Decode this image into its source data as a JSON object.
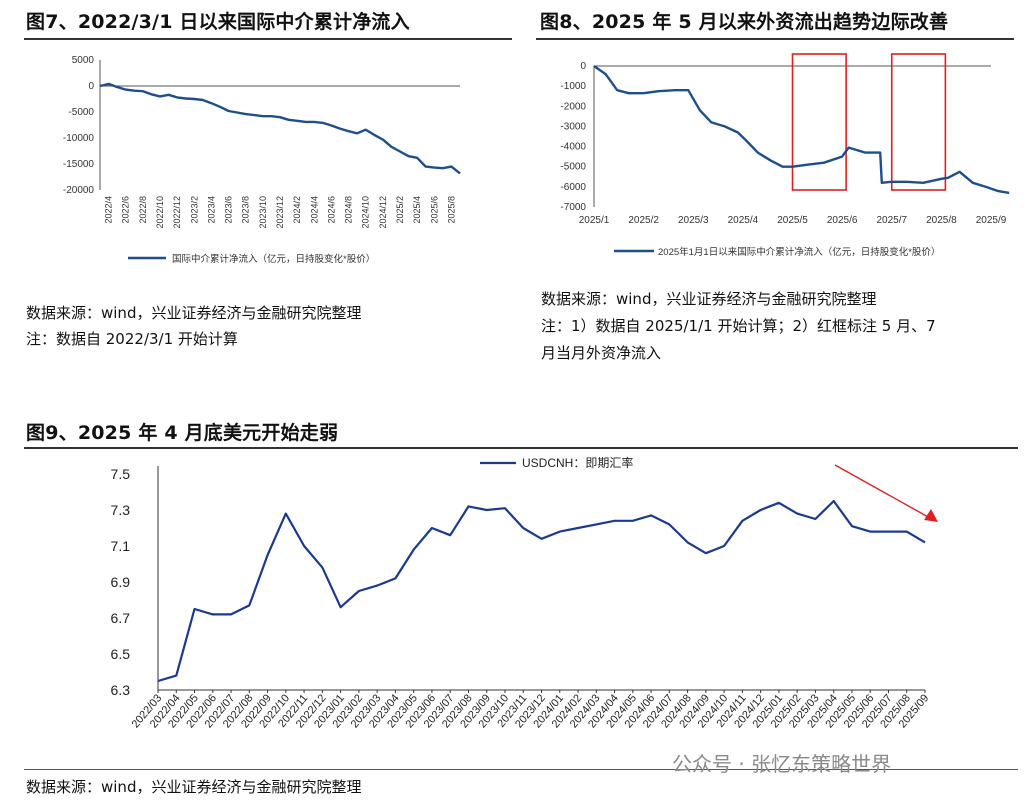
{
  "chart7": {
    "title": "图7、2022/3/1 日以来国际中介累计净流入",
    "legend": "国际中介累计净流入（亿元，日持股变化*股价）",
    "source": "数据来源：wind，兴业证券经济与金融研究院整理",
    "note": "注：数据自 2022/3/1 开始计算"
  },
  "chart8": {
    "title": "图8、2025 年 5 月以来外资流出趋势边际改善",
    "legend": "2025年1月1日以来国际中介累计净流入（亿元，日持股变化*股价）",
    "source": "数据来源：wind，兴业证券经济与金融研究院整理",
    "note_line1": "注：1）数据自 2025/1/1 开始计算；2）红框标注 5 月、7",
    "note_line2": "月当月外资净流入"
  },
  "chart9": {
    "title": "图9、2025 年 4 月底美元开始走弱",
    "legend": "USDCNH：即期汇率",
    "source": "数据来源：wind，兴业证券经济与金融研究院整理"
  },
  "watermark": "公众号 · 张忆东策略世界",
  "colors": {
    "series": "#1f4e8c",
    "series9": "#1a3a8f",
    "highlight": "#e02020",
    "arrow": "#e02020"
  },
  "chart_data": [
    {
      "type": "line",
      "title": "图7、2022/3/1 日以来国际中介累计净流入",
      "xlabel": "",
      "ylabel": "",
      "ylim": [
        -20000,
        5000
      ],
      "yticks": [
        5000,
        0,
        -5000,
        -10000,
        -15000,
        -20000
      ],
      "x_tick_labels": [
        "2022/4",
        "2022/6",
        "2022/8",
        "2022/10",
        "2022/12",
        "2023/2",
        "2023/4",
        "2023/6",
        "2023/8",
        "2023/10",
        "2023/12",
        "2024/2",
        "2024/4",
        "2024/6",
        "2024/8",
        "2024/10",
        "2024/12",
        "2025/2",
        "2025/4",
        "2025/6",
        "2025/8"
      ],
      "series": [
        {
          "name": "国际中介累计净流入（亿元，日持股变化*股价）",
          "x": [
            "2022/3",
            "2022/4",
            "2022/5",
            "2022/6",
            "2022/7",
            "2022/8",
            "2022/9",
            "2022/10",
            "2022/11",
            "2022/12",
            "2023/1",
            "2023/2",
            "2023/3",
            "2023/4",
            "2023/5",
            "2023/6",
            "2023/7",
            "2023/8",
            "2023/9",
            "2023/10",
            "2023/11",
            "2023/12",
            "2024/1",
            "2024/2",
            "2024/3",
            "2024/4",
            "2024/5",
            "2024/6",
            "2024/7",
            "2024/8",
            "2024/9",
            "2024/10",
            "2024/11",
            "2024/12",
            "2025/1",
            "2025/2",
            "2025/3",
            "2025/4",
            "2025/5",
            "2025/6",
            "2025/7",
            "2025/8",
            "2025/9"
          ],
          "values": [
            0,
            400,
            -200,
            -700,
            -900,
            -1000,
            -1600,
            -2000,
            -1700,
            -2200,
            -2400,
            -2500,
            -2700,
            -3300,
            -4000,
            -4800,
            -5100,
            -5400,
            -5600,
            -5800,
            -5800,
            -6000,
            -6500,
            -6700,
            -6900,
            -6900,
            -7100,
            -7600,
            -8200,
            -8700,
            -9100,
            -8400,
            -9400,
            -10300,
            -11700,
            -12600,
            -13500,
            -13800,
            -15500,
            -15700,
            -15800,
            -15500,
            -16800
          ]
        }
      ]
    },
    {
      "type": "line",
      "title": "图8、2025 年 5 月以来外资流出趋势边际改善",
      "xlabel": "",
      "ylabel": "",
      "ylim": [
        -7000,
        0
      ],
      "yticks": [
        0,
        -1000,
        -2000,
        -3000,
        -4000,
        -5000,
        -6000,
        -7000
      ],
      "x_tick_labels": [
        "2025/1",
        "2025/2",
        "2025/3",
        "2025/4",
        "2025/5",
        "2025/6",
        "2025/7",
        "2025/8",
        "2025/9"
      ],
      "highlight_ranges": [
        [
          "2025/5/1",
          "2025/5/31"
        ],
        [
          "2025/7/1",
          "2025/7/31"
        ]
      ],
      "series": [
        {
          "name": "2025年1月1日以来国际中介累计净流入（亿元，日持股变化*股价）",
          "x": [
            "2025/1/1",
            "2025/1/8",
            "2025/1/15",
            "2025/1/22",
            "2025/2/1",
            "2025/2/10",
            "2025/2/20",
            "2025/2/28",
            "2025/3/5",
            "2025/3/12",
            "2025/3/20",
            "2025/3/28",
            "2025/4/3",
            "2025/4/10",
            "2025/4/18",
            "2025/4/25",
            "2025/5/1",
            "2025/5/10",
            "2025/5/20",
            "2025/5/31",
            "2025/6/5",
            "2025/6/15",
            "2025/6/24",
            "2025/6/25",
            "2025/7/1",
            "2025/7/10",
            "2025/7/20",
            "2025/7/31",
            "2025/8/5",
            "2025/8/12",
            "2025/8/20",
            "2025/8/28",
            "2025/9/5",
            "2025/9/12"
          ],
          "values": [
            0,
            -400,
            -1200,
            -1350,
            -1350,
            -1250,
            -1200,
            -1200,
            -2200,
            -2800,
            -3000,
            -3300,
            -3700,
            -4300,
            -4700,
            -5000,
            -5000,
            -4900,
            -4800,
            -4500,
            -4050,
            -4300,
            -4300,
            -5800,
            -5750,
            -5750,
            -5800,
            -5600,
            -5550,
            -5250,
            -5800,
            -6000,
            -6200,
            -6300
          ]
        }
      ]
    },
    {
      "type": "line",
      "title": "图9、2025 年 4 月底美元开始走弱",
      "xlabel": "",
      "ylabel": "",
      "ylim": [
        6.3,
        7.5
      ],
      "yticks": [
        7.5,
        7.3,
        7.1,
        6.9,
        6.7,
        6.5,
        6.3
      ],
      "x_tick_labels": [
        "2022/03",
        "2022/04",
        "2022/05",
        "2022/06",
        "2022/07",
        "2022/08",
        "2022/09",
        "2022/10",
        "2022/11",
        "2022/12",
        "2023/01",
        "2023/02",
        "2023/03",
        "2023/04",
        "2023/05",
        "2023/06",
        "2023/07",
        "2023/08",
        "2023/09",
        "2023/10",
        "2023/11",
        "2023/12",
        "2024/01",
        "2024/02",
        "2024/03",
        "2024/04",
        "2024/05",
        "2024/06",
        "2024/07",
        "2024/08",
        "2024/09",
        "2024/10",
        "2024/11",
        "2024/12",
        "2025/01",
        "2025/02",
        "2025/03",
        "2025/04",
        "2025/05",
        "2025/06",
        "2025/07",
        "2025/08",
        "2025/09"
      ],
      "series": [
        {
          "name": "USDCNH：即期汇率",
          "x": [
            "2022/03",
            "2022/04",
            "2022/05",
            "2022/06",
            "2022/07",
            "2022/08",
            "2022/09",
            "2022/10",
            "2022/11",
            "2022/12",
            "2023/01",
            "2023/02",
            "2023/03",
            "2023/04",
            "2023/05",
            "2023/06",
            "2023/07",
            "2023/08",
            "2023/09",
            "2023/10",
            "2023/11",
            "2023/12",
            "2024/01",
            "2024/02",
            "2024/03",
            "2024/04",
            "2024/05",
            "2024/06",
            "2024/07",
            "2024/08",
            "2024/09",
            "2024/10",
            "2024/11",
            "2024/12",
            "2025/01",
            "2025/02",
            "2025/03",
            "2025/04",
            "2025/05",
            "2025/06",
            "2025/07",
            "2025/08",
            "2025/09"
          ],
          "values": [
            6.35,
            6.38,
            6.75,
            6.72,
            6.72,
            6.77,
            7.05,
            7.28,
            7.1,
            6.98,
            6.76,
            6.85,
            6.88,
            6.92,
            7.08,
            7.2,
            7.16,
            7.32,
            7.3,
            7.31,
            7.2,
            7.14,
            7.18,
            7.2,
            7.22,
            7.24,
            7.24,
            7.27,
            7.22,
            7.12,
            7.06,
            7.1,
            7.24,
            7.3,
            7.34,
            7.28,
            7.25,
            7.35,
            7.21,
            7.18,
            7.18,
            7.18,
            7.12
          ]
        }
      ]
    }
  ]
}
